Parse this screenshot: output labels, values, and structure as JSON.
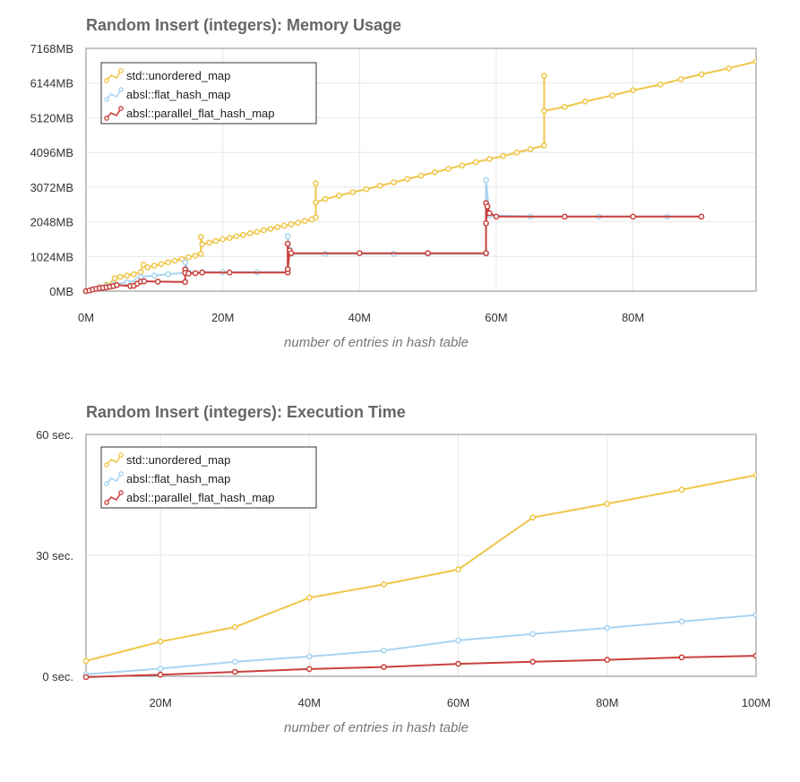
{
  "chart_data": [
    {
      "type": "line",
      "title": "Random Insert (integers): Memory Usage",
      "xlabel": "number of entries in hash table",
      "ylabel": "",
      "xlim": [
        0,
        98
      ],
      "ylim": [
        0,
        7168
      ],
      "x_unit": "M entries",
      "y_unit": "MB",
      "grid": true,
      "legend_position": "top-left",
      "x_ticks": [
        "0M",
        "20M",
        "40M",
        "60M",
        "80M"
      ],
      "y_ticks": [
        "0MB",
        "1024MB",
        "2048MB",
        "3072MB",
        "4096MB",
        "5120MB",
        "6144MB",
        "7168MB"
      ],
      "series": [
        {
          "name": "std::unordered_map",
          "color": "#f0c648",
          "points": [
            [
              0,
              0
            ],
            [
              1,
              60
            ],
            [
              2,
              120
            ],
            [
              3,
              190
            ],
            [
              4,
              260
            ],
            [
              4.2,
              380
            ],
            [
              5,
              420
            ],
            [
              6,
              460
            ],
            [
              7,
              500
            ],
            [
              8,
              560
            ],
            [
              8.4,
              780
            ],
            [
              9,
              700
            ],
            [
              10,
              750
            ],
            [
              11,
              800
            ],
            [
              12,
              850
            ],
            [
              13,
              900
            ],
            [
              14,
              950
            ],
            [
              15,
              1000
            ],
            [
              16,
              1050
            ],
            [
              16.8,
              1100
            ],
            [
              16.8,
              1600
            ],
            [
              17,
              1380
            ],
            [
              18,
              1430
            ],
            [
              19,
              1480
            ],
            [
              20,
              1530
            ],
            [
              21,
              1570
            ],
            [
              22,
              1620
            ],
            [
              23,
              1660
            ],
            [
              24,
              1710
            ],
            [
              25,
              1750
            ],
            [
              26,
              1800
            ],
            [
              27,
              1840
            ],
            [
              28,
              1890
            ],
            [
              29,
              1930
            ],
            [
              30,
              1970
            ],
            [
              31,
              2020
            ],
            [
              32,
              2070
            ],
            [
              33,
              2120
            ],
            [
              33.6,
              2180
            ],
            [
              33.6,
              3180
            ],
            [
              33.6,
              2620
            ],
            [
              35,
              2720
            ],
            [
              37,
              2820
            ],
            [
              39,
              2920
            ],
            [
              41,
              3010
            ],
            [
              43,
              3110
            ],
            [
              45,
              3210
            ],
            [
              47,
              3310
            ],
            [
              49,
              3410
            ],
            [
              51,
              3510
            ],
            [
              53,
              3610
            ],
            [
              55,
              3710
            ],
            [
              57,
              3810
            ],
            [
              59,
              3900
            ],
            [
              61,
              3990
            ],
            [
              63,
              4090
            ],
            [
              65,
              4190
            ],
            [
              67,
              4300
            ],
            [
              67,
              6360
            ],
            [
              67,
              5320
            ],
            [
              70,
              5440
            ],
            [
              73,
              5600
            ],
            [
              77,
              5780
            ],
            [
              80,
              5930
            ],
            [
              84,
              6100
            ],
            [
              87,
              6260
            ],
            [
              90,
              6400
            ],
            [
              94,
              6580
            ],
            [
              98,
              6780
            ]
          ]
        },
        {
          "name": "absl::flat_hash_map",
          "color": "#a8d4f2",
          "points": [
            [
              0,
              0
            ],
            [
              1,
              60
            ],
            [
              2,
              110
            ],
            [
              3,
              150
            ],
            [
              4,
              200
            ],
            [
              6,
              260
            ],
            [
              7.5,
              320
            ],
            [
              8,
              420
            ],
            [
              10,
              460
            ],
            [
              12,
              500
            ],
            [
              14.5,
              540
            ],
            [
              14.5,
              850
            ],
            [
              15,
              560
            ],
            [
              17,
              560
            ],
            [
              20,
              560
            ],
            [
              25,
              560
            ],
            [
              29.5,
              560
            ],
            [
              29.5,
              1620
            ],
            [
              30,
              1100
            ],
            [
              35,
              1100
            ],
            [
              45,
              1100
            ],
            [
              50,
              1100
            ],
            [
              58.5,
              1100
            ],
            [
              58.5,
              3280
            ],
            [
              59,
              2240
            ],
            [
              65,
              2200
            ],
            [
              75,
              2200
            ],
            [
              85,
              2200
            ],
            [
              90,
              2200
            ]
          ]
        },
        {
          "name": "absl::parallel_flat_hash_map",
          "color": "#c9403b",
          "points": [
            [
              0,
              0
            ],
            [
              0.5,
              20
            ],
            [
              1,
              50
            ],
            [
              1.5,
              70
            ],
            [
              2,
              90
            ],
            [
              2.5,
              100
            ],
            [
              3,
              110
            ],
            [
              3.5,
              130
            ],
            [
              4,
              150
            ],
            [
              4.5,
              180
            ],
            [
              6.5,
              150
            ],
            [
              7,
              160
            ],
            [
              7.5,
              220
            ],
            [
              8,
              280
            ],
            [
              8.5,
              290
            ],
            [
              10.5,
              280
            ],
            [
              14.5,
              270
            ],
            [
              14.5,
              640
            ],
            [
              14.5,
              540
            ],
            [
              15,
              520
            ],
            [
              16,
              530
            ],
            [
              17,
              550
            ],
            [
              21,
              550
            ],
            [
              29.5,
              550
            ],
            [
              29.5,
              1400
            ],
            [
              29.5,
              650
            ],
            [
              29.8,
              1200
            ],
            [
              30,
              1120
            ],
            [
              40,
              1120
            ],
            [
              50,
              1120
            ],
            [
              58.5,
              1120
            ],
            [
              58.5,
              2600
            ],
            [
              58.5,
              2000
            ],
            [
              58.7,
              2500
            ],
            [
              59,
              2300
            ],
            [
              60,
              2200
            ],
            [
              70,
              2200
            ],
            [
              80,
              2200
            ],
            [
              90,
              2200
            ]
          ]
        }
      ]
    },
    {
      "type": "line",
      "title": "Random Insert (integers): Execution Time",
      "xlabel": "number of entries in hash table",
      "ylabel": "",
      "xlim": [
        10,
        100
      ],
      "ylim": [
        0,
        60
      ],
      "x_unit": "M entries",
      "y_unit": "sec.",
      "grid": true,
      "legend_position": "top-left",
      "x_ticks": [
        "20M",
        "40M",
        "60M",
        "80M",
        "100M"
      ],
      "y_ticks": [
        "0 sec.",
        "30 sec.",
        "60 sec."
      ],
      "series": [
        {
          "name": "std::unordered_map",
          "color": "#f0c648",
          "x": [
            10,
            20,
            30,
            40,
            50,
            60,
            70,
            80,
            90,
            100
          ],
          "values": [
            3.8,
            8.6,
            12.2,
            19.5,
            22.8,
            26.5,
            39.4,
            42.8,
            46.3,
            49.9
          ]
        },
        {
          "name": "absl::flat_hash_map",
          "color": "#a8d4f2",
          "x": [
            10,
            20,
            30,
            40,
            50,
            60,
            70,
            80,
            90,
            100
          ],
          "values": [
            0.5,
            1.9,
            3.6,
            4.9,
            6.4,
            8.9,
            10.5,
            12.0,
            13.6,
            15.2
          ]
        },
        {
          "name": "absl::parallel_flat_hash_map",
          "color": "#c9403b",
          "x": [
            10,
            20,
            30,
            40,
            50,
            60,
            70,
            80,
            90,
            100
          ],
          "values": [
            -0.2,
            0.4,
            1.1,
            1.8,
            2.3,
            3.1,
            3.6,
            4.1,
            4.7,
            5.1
          ]
        }
      ]
    }
  ]
}
